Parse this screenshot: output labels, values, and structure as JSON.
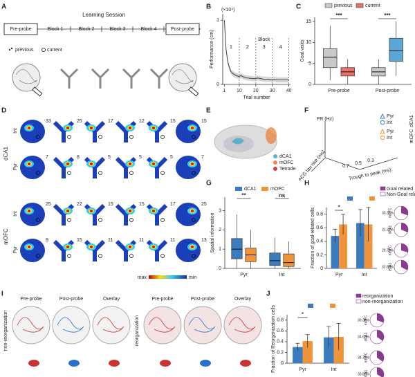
{
  "panel_labels": [
    "A",
    "B",
    "C",
    "D",
    "E",
    "F",
    "G",
    "H",
    "I",
    "J"
  ],
  "a": {
    "title": "Learning Session",
    "stages": [
      "Pre-probe",
      "Block 1",
      "Block 2",
      "Block 3",
      "Block 4",
      "Post-probe"
    ],
    "legend": [
      "previous",
      "current"
    ]
  },
  "b": {
    "type": "line",
    "multiplier": "(×10⁴)",
    "ylabel": "Performance (cm)",
    "xlabel": "Trial number",
    "block_label": "Block",
    "blocks": [
      "1",
      "2",
      "3",
      "4"
    ],
    "block_edges": [
      10,
      20,
      30,
      40
    ],
    "x": [
      1,
      2,
      3,
      4,
      5,
      6,
      8,
      10,
      11,
      13,
      15,
      18,
      20,
      21,
      23,
      25,
      28,
      30,
      31,
      33,
      35,
      38,
      40
    ],
    "values": [
      1.0,
      0.55,
      0.36,
      0.26,
      0.2,
      0.17,
      0.14,
      0.12,
      0.14,
      0.11,
      0.1,
      0.09,
      0.09,
      0.1,
      0.09,
      0.08,
      0.08,
      0.07,
      0.08,
      0.07,
      0.07,
      0.07,
      0.07
    ],
    "color": "#444",
    "xlim": [
      0,
      41
    ],
    "ylim": [
      0,
      1.1
    ],
    "xticks": [
      1,
      10,
      20,
      30,
      40
    ],
    "yticks": [
      0,
      1
    ]
  },
  "c": {
    "type": "box",
    "ylabel": "Goal visits",
    "categories": [
      "Pre-probe",
      "Post-probe"
    ],
    "ylim": [
      0,
      16
    ],
    "yticks": [
      0,
      5,
      10,
      15
    ],
    "significance": [
      "***",
      "***"
    ],
    "series": [
      {
        "name": "previous",
        "color": "#c8c8c8",
        "colors": [
          "#c8c8c8",
          "#c8c8c8"
        ],
        "boxes": [
          {
            "min": 1,
            "q1": 4,
            "median": 6.5,
            "q3": 8.5,
            "max": 14
          },
          {
            "min": 0,
            "q1": 2,
            "median": 3,
            "q3": 4,
            "max": 6
          }
        ]
      },
      {
        "name": "current",
        "color": "#e8706a",
        "colors": [
          "#e8706a",
          "#5aa7d6"
        ],
        "boxes": [
          {
            "min": 0,
            "q1": 2,
            "median": 3,
            "q3": 4,
            "max": 6
          },
          {
            "min": 2,
            "q1": 5.5,
            "median": 8,
            "q3": 11,
            "max": 15
          }
        ]
      }
    ]
  },
  "d": {
    "regions": [
      "dCA1",
      "mOFC"
    ],
    "cell_types": [
      "Int",
      "Pyr",
      "Int",
      "Pyr"
    ],
    "peaks": [
      [
        33,
        25,
        17,
        12,
        15,
        15
      ],
      [
        7,
        8,
        5,
        5,
        5,
        7
      ],
      [
        25,
        22,
        15,
        15,
        17,
        25
      ],
      [
        9,
        15,
        11,
        11,
        11,
        13
      ]
    ],
    "colorbar": [
      "max",
      "min"
    ]
  },
  "e": {
    "legend": [
      {
        "name": "dCA1",
        "color": "#5cb0c9"
      },
      {
        "name": "mOFC",
        "color": "#e8874a"
      },
      {
        "name": "Tetrode",
        "color": "#d04040"
      }
    ]
  },
  "f": {
    "zlabel": "FR (Hz)",
    "ylabel": "ACG tau rise (ms)",
    "xlabel": "Trough to peak (ms)",
    "xticks": [
      0.7,
      0.5,
      0.3
    ],
    "legend": [
      {
        "region": "dCA1",
        "entries": [
          {
            "name": "Pyr",
            "color": "#3b7bbf"
          },
          {
            "name": "Int",
            "color": "#3b7bbf"
          }
        ]
      },
      {
        "region": "mOFC",
        "entries": [
          {
            "name": "Pyr",
            "color": "#f0943c"
          },
          {
            "name": "Int",
            "color": "#f0943c"
          }
        ]
      }
    ]
  },
  "g": {
    "type": "box",
    "ylabel": "Spatial information",
    "categories": [
      "Pyr",
      "Int"
    ],
    "ylim": [
      0,
      3.7
    ],
    "yticks": [
      0,
      1,
      2,
      3
    ],
    "significance": [
      "**",
      "ns"
    ],
    "series": [
      {
        "name": "dCA1",
        "color": "#3b7bbf",
        "colors": [
          "#3b7bbf",
          "#3b7bbf"
        ],
        "boxes": [
          {
            "min": 0,
            "q1": 0.5,
            "median": 1,
            "q3": 1.55,
            "max": 2.8
          },
          {
            "min": 0,
            "q1": 0.15,
            "median": 0.4,
            "q3": 0.8,
            "max": 1.6
          }
        ]
      },
      {
        "name": "mOFC",
        "color": "#f0943c",
        "colors": [
          "#f0943c",
          "#f0943c"
        ],
        "boxes": [
          {
            "min": 0,
            "q1": 0.35,
            "median": 0.7,
            "q3": 1.05,
            "max": 2.0
          },
          {
            "min": 0,
            "q1": 0.1,
            "median": 0.3,
            "q3": 0.75,
            "max": 1.4
          }
        ]
      }
    ]
  },
  "h": {
    "type": "bar",
    "ylabel": "Fraction of goal-related cells",
    "categories": [
      "Pyr",
      "Int"
    ],
    "ylim": [
      0,
      0.9
    ],
    "yticks": [
      0,
      0.2,
      0.4,
      0.6,
      0.8
    ],
    "significance": [
      "*"
    ],
    "series": [
      {
        "name": "dCA1",
        "color": "#3b7bbf",
        "values": [
          0.48,
          0.67
        ],
        "errors": [
          0.1,
          0.2
        ]
      },
      {
        "name": "mOFC",
        "color": "#f0943c",
        "values": [
          0.65,
          0.65
        ],
        "errors": [
          0.15,
          0.25
        ]
      }
    ],
    "legend": [
      "Goal related",
      "Non-Goal related"
    ],
    "pie_color": "#8b3b8f",
    "pies": [
      {
        "label": "mOFC",
        "value": 30.37,
        "value_label": "30.37%"
      },
      {
        "label": "dCA1",
        "value": 31.31,
        "value_label": "31.31%"
      },
      {
        "label": "mOFC",
        "value": 29.73,
        "value_label": "29.73%"
      },
      {
        "label": "dCA1",
        "value": 32.88,
        "value_label": "32.88%"
      }
    ]
  },
  "i": {
    "groups": [
      "non-reorganization",
      "reorganization"
    ],
    "columns": [
      "Pre-probe",
      "Post-probe",
      "Overlay"
    ]
  },
  "j": {
    "type": "bar",
    "ylabel": "Fraction of Reorganization cells",
    "categories": [
      "Pyr",
      "Int"
    ],
    "ylim": [
      0,
      0.9
    ],
    "yticks": [
      0,
      0.2,
      0.4,
      0.6,
      0.8
    ],
    "significance": [
      "*"
    ],
    "series": [
      {
        "name": "dCA1",
        "color": "#3b7bbf",
        "values": [
          0.3,
          0.48
        ],
        "errors": [
          0.07,
          0.2
        ]
      },
      {
        "name": "mOFC",
        "color": "#f0943c",
        "values": [
          0.41,
          0.49
        ],
        "errors": [
          0.12,
          0.25
        ]
      }
    ],
    "legend": [
      "reorganization",
      "non-reorganization"
    ],
    "pie_color": "#8b3b8f",
    "pies": [
      {
        "label": "mOFC",
        "value": 30.36,
        "value_label": "30.36%"
      },
      {
        "label": "dCA1",
        "value": 34.65,
        "value_label": "34.65%"
      },
      {
        "label": "mOFC",
        "value": 34.79,
        "value_label": "34.79%"
      },
      {
        "label": "dCA1",
        "value": 33.85,
        "value_label": "33.85%"
      }
    ]
  }
}
